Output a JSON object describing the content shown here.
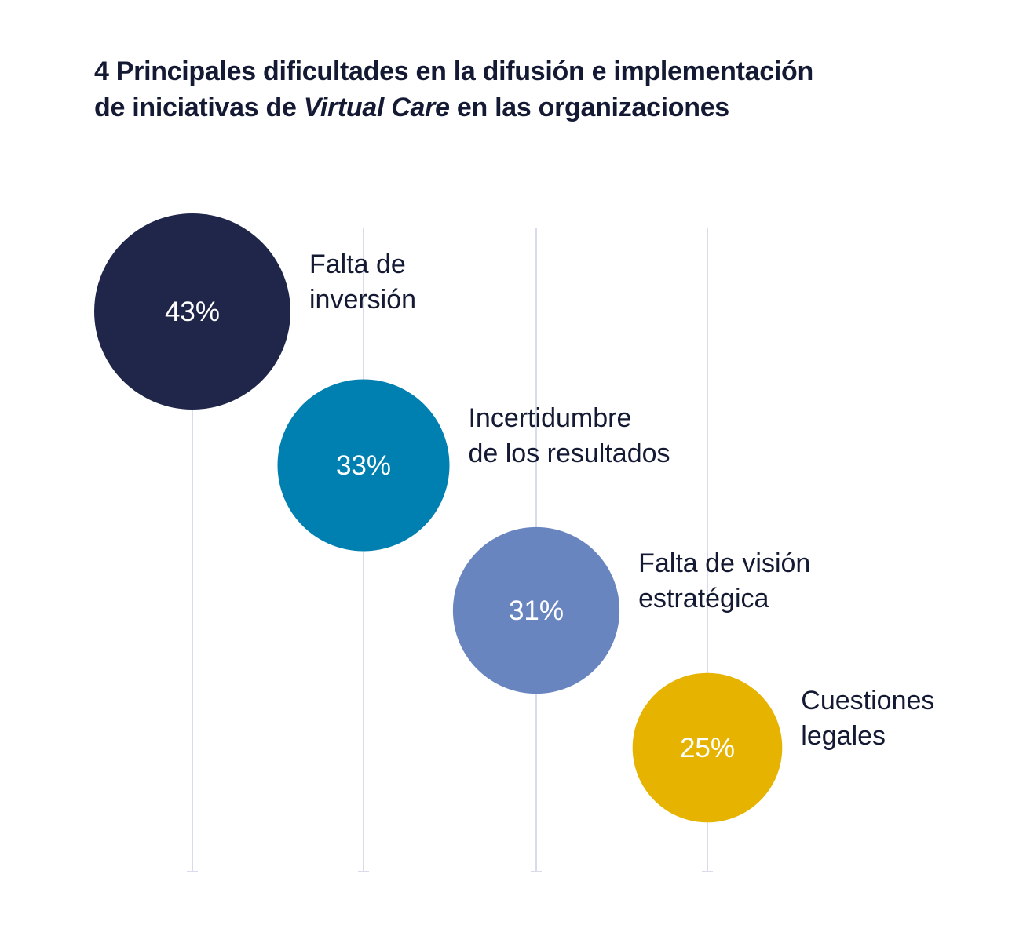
{
  "chart_data": {
    "type": "bubble",
    "title_line1": "4 Principales dificultades en la difusión e implementación",
    "title_line2_pre": "de iniciativas de ",
    "title_line2_italic": "Virtual Care",
    "title_line2_post": " en las organizaciones",
    "unit": "%",
    "items": [
      {
        "label_line1": "Falta de",
        "label_line2": "inversión",
        "value": 43,
        "value_label": "43%",
        "color": "#1f264a"
      },
      {
        "label_line1": "Incertidumbre",
        "label_line2": "de los resultados",
        "value": 33,
        "value_label": "33%",
        "color": "#0080b0"
      },
      {
        "label_line1": "Falta de visión",
        "label_line2": "estratégica",
        "value": 31,
        "value_label": "31%",
        "color": "#6985c0"
      },
      {
        "label_line1": "Cuestiones",
        "label_line2": "legales",
        "value": 25,
        "value_label": "25%",
        "color": "#e6b400"
      }
    ],
    "guide_color": "#d8dcea"
  }
}
